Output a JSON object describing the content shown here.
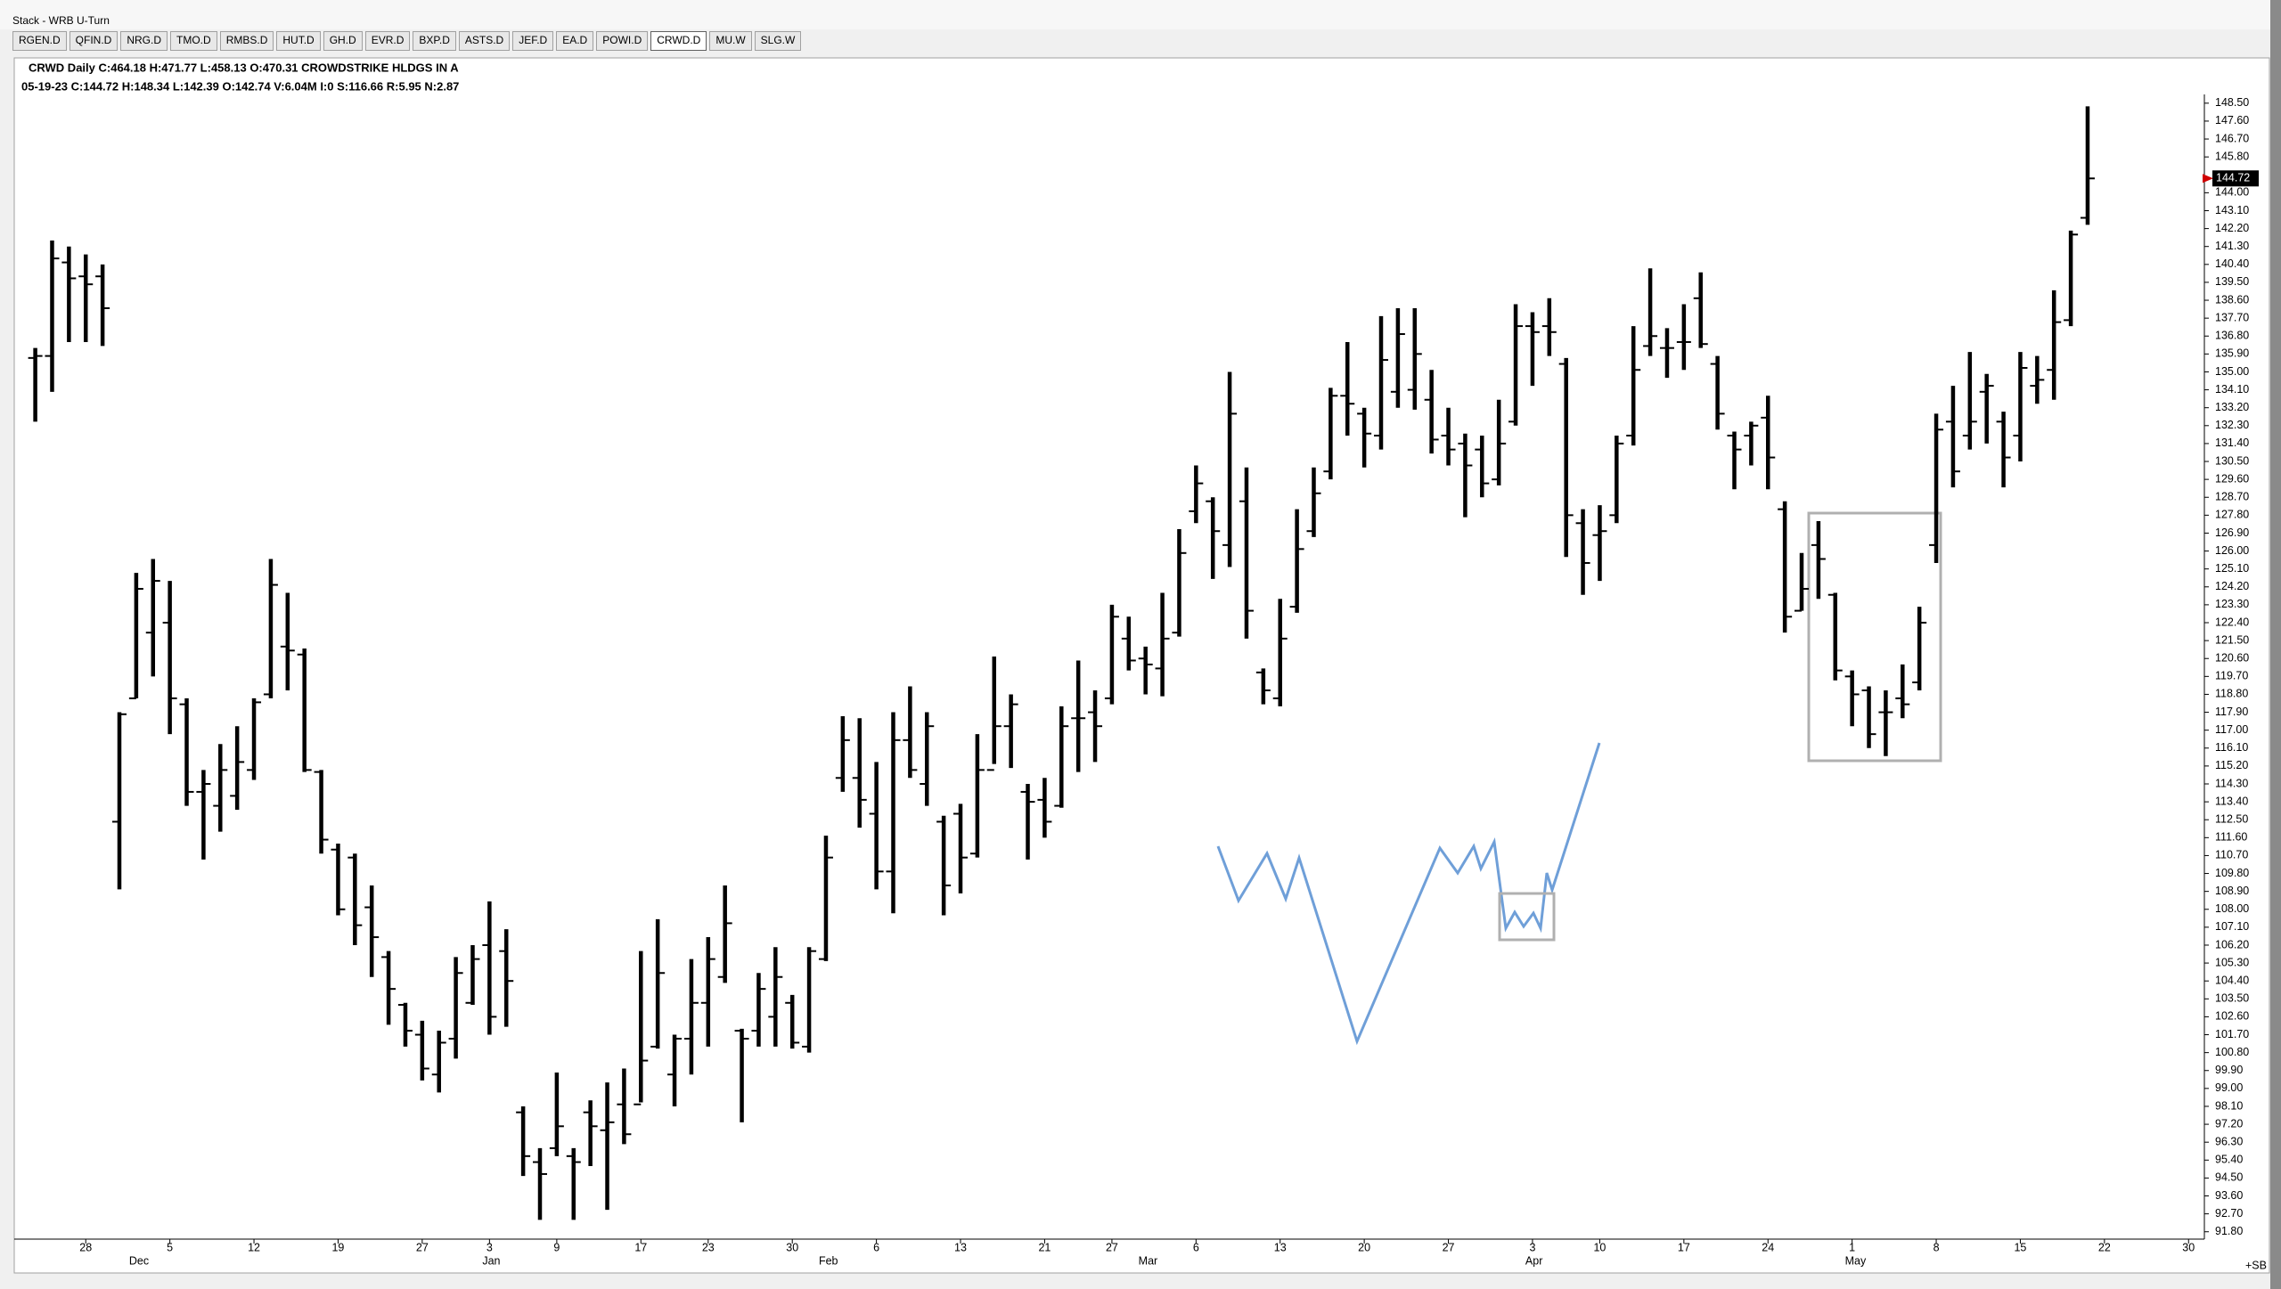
{
  "window_title": "Stack - WRB U-Turn",
  "tabs": [
    "RGEN.D",
    "QFIN.D",
    "NRG.D",
    "TMO.D",
    "RMBS.D",
    "HUT.D",
    "GH.D",
    "EVR.D",
    "BXP.D",
    "ASTS.D",
    "JEF.D",
    "EA.D",
    "POWI.D",
    "CRWD.D",
    "MU.W",
    "SLG.W"
  ],
  "header": {
    "line1": "CRWD Daily C:464.18 H:471.77 L:458.13 O:470.31 CROWDSTRIKE HLDGS IN A",
    "line2": "05-19-23 C:144.72 H:148.34 L:142.39 O:142.74 V:6.04M I:0 S:116.66 R:5.95 N:2.87"
  },
  "chart_data": {
    "type": "ohlc",
    "color": "#000000",
    "last_label": "144.72",
    "corner_label": "+SB",
    "xlim": [
      -1.25,
      128.94
    ],
    "ylim": [
      91.43,
      148.94
    ],
    "open": [
      135.7,
      135.8,
      140.5,
      139.8,
      139.8,
      112.4,
      118.6,
      121.9,
      122.4,
      118.3,
      113.9,
      113.2,
      113.7,
      115.0,
      118.8,
      121.2,
      120.8,
      114.9,
      111.0,
      110.6,
      108.1,
      105.6,
      103.2,
      101.7,
      99.7,
      101.5,
      103.3,
      106.2,
      105.9,
      97.8,
      95.3,
      96.0,
      95.6,
      97.8,
      96.9,
      98.2,
      98.2,
      101.1,
      99.7,
      101.5,
      103.3,
      104.6,
      101.9,
      101.9,
      102.6,
      103.3,
      101.1,
      105.5,
      114.6,
      114.6,
      112.8,
      109.9,
      116.5,
      114.3,
      112.4,
      112.8,
      110.8,
      115.0,
      117.2,
      113.9,
      113.5,
      113.2,
      117.6,
      117.9,
      118.6,
      121.6,
      120.6,
      120.1,
      121.9,
      128.0,
      128.5,
      126.3,
      128.5,
      119.9,
      118.6,
      123.2,
      127.0,
      130.0,
      133.8,
      132.9,
      131.8,
      134.0,
      134.1,
      133.6,
      131.8,
      131.4,
      131.1,
      129.6,
      132.5,
      137.3,
      137.3,
      135.4,
      127.4,
      126.8,
      127.8,
      131.8,
      136.3,
      136.2,
      136.5,
      138.7,
      135.4,
      131.8,
      131.8,
      132.7,
      128.1,
      123.0,
      126.3,
      123.8,
      119.7,
      119.0,
      117.9,
      118.6,
      119.4,
      126.3,
      132.5,
      131.8,
      134.0,
      132.5,
      131.8,
      134.3,
      135.1,
      137.6,
      142.74
    ],
    "high": [
      136.2,
      141.6,
      141.3,
      140.9,
      140.4,
      117.9,
      124.9,
      125.6,
      124.5,
      118.6,
      115.0,
      116.3,
      117.2,
      118.6,
      125.6,
      123.9,
      121.1,
      115.0,
      111.3,
      110.8,
      109.2,
      105.9,
      103.3,
      102.4,
      101.9,
      105.6,
      106.2,
      108.4,
      107.0,
      98.1,
      96.0,
      99.8,
      96.0,
      98.4,
      99.3,
      100.0,
      105.9,
      107.5,
      101.7,
      105.5,
      106.6,
      109.2,
      102.0,
      104.8,
      106.1,
      103.7,
      106.1,
      111.7,
      117.7,
      117.6,
      115.4,
      117.9,
      119.2,
      117.9,
      112.7,
      113.3,
      116.8,
      120.7,
      118.8,
      114.3,
      114.6,
      118.2,
      120.5,
      119.0,
      123.3,
      122.7,
      121.2,
      123.9,
      127.1,
      130.3,
      128.7,
      135.0,
      130.2,
      120.1,
      123.6,
      128.1,
      130.2,
      134.2,
      136.5,
      133.2,
      137.8,
      138.2,
      138.2,
      135.1,
      133.2,
      131.9,
      131.8,
      133.6,
      138.4,
      138.0,
      138.7,
      135.7,
      128.1,
      128.3,
      131.8,
      137.3,
      140.2,
      137.2,
      138.4,
      140.0,
      135.8,
      132.0,
      132.5,
      133.8,
      128.5,
      125.9,
      127.5,
      123.9,
      120.0,
      119.2,
      119.0,
      120.3,
      123.2,
      132.9,
      134.3,
      136.0,
      134.9,
      133.0,
      136.0,
      135.8,
      139.1,
      142.1,
      148.34
    ],
    "low": [
      132.5,
      134.0,
      136.5,
      136.5,
      136.3,
      109.0,
      118.6,
      119.7,
      116.8,
      113.2,
      110.5,
      111.9,
      113.0,
      114.5,
      118.6,
      119.0,
      114.9,
      110.8,
      107.7,
      106.2,
      104.6,
      102.2,
      101.1,
      99.4,
      98.8,
      100.5,
      103.2,
      101.7,
      102.1,
      94.6,
      92.4,
      95.6,
      92.4,
      95.1,
      92.9,
      96.2,
      98.3,
      101.0,
      98.1,
      99.7,
      101.1,
      104.3,
      97.3,
      101.1,
      101.1,
      101.0,
      100.8,
      105.4,
      113.9,
      112.1,
      109.0,
      107.8,
      114.6,
      113.2,
      107.7,
      108.8,
      110.6,
      115.3,
      115.1,
      110.5,
      111.6,
      113.1,
      114.9,
      115.4,
      118.3,
      120.0,
      118.8,
      118.7,
      121.7,
      127.4,
      124.6,
      125.2,
      121.6,
      118.3,
      118.2,
      122.9,
      126.7,
      129.6,
      131.8,
      130.2,
      131.1,
      133.2,
      133.1,
      130.9,
      130.3,
      127.7,
      128.7,
      129.3,
      132.3,
      134.3,
      135.8,
      125.7,
      123.8,
      124.5,
      127.4,
      131.3,
      135.8,
      134.7,
      135.1,
      136.2,
      132.1,
      129.1,
      130.3,
      129.1,
      121.9,
      123.0,
      123.6,
      119.5,
      117.2,
      116.1,
      115.7,
      117.6,
      119.0,
      125.4,
      129.2,
      131.1,
      131.4,
      129.2,
      130.5,
      133.4,
      133.6,
      137.3,
      142.39
    ],
    "close": [
      135.8,
      140.7,
      139.7,
      139.4,
      138.2,
      117.8,
      124.1,
      124.5,
      118.6,
      113.9,
      114.3,
      115.0,
      115.4,
      118.4,
      124.3,
      121.0,
      115.0,
      111.5,
      108.0,
      107.2,
      106.6,
      104.0,
      101.9,
      100.0,
      101.3,
      104.8,
      105.5,
      102.6,
      104.4,
      95.6,
      94.7,
      97.1,
      95.3,
      97.1,
      97.3,
      96.7,
      100.4,
      104.8,
      101.5,
      103.3,
      105.5,
      107.3,
      101.5,
      104.0,
      104.6,
      101.3,
      105.9,
      110.6,
      116.5,
      113.5,
      109.9,
      116.5,
      115.0,
      117.2,
      109.2,
      110.6,
      115.0,
      117.2,
      118.3,
      113.4,
      112.4,
      117.2,
      117.6,
      117.2,
      122.7,
      120.5,
      120.3,
      121.6,
      125.9,
      129.4,
      127.0,
      132.9,
      123.0,
      119.0,
      121.6,
      126.1,
      128.9,
      133.8,
      133.4,
      131.9,
      135.6,
      136.9,
      135.9,
      131.6,
      131.1,
      130.3,
      129.4,
      131.4,
      137.3,
      137.0,
      137.0,
      127.8,
      125.4,
      127.0,
      131.4,
      135.1,
      136.8,
      136.2,
      136.5,
      136.4,
      132.9,
      131.1,
      132.3,
      130.7,
      122.7,
      124.1,
      125.6,
      120.0,
      118.8,
      116.8,
      117.9,
      118.3,
      122.4,
      132.1,
      130.0,
      132.5,
      134.3,
      130.7,
      135.2,
      134.6,
      137.5,
      141.9,
      144.72
    ],
    "xticks": [
      {
        "value": 3,
        "label": "28"
      },
      {
        "value": 8,
        "label": "5"
      },
      {
        "value": 13,
        "label": "12"
      },
      {
        "value": 18,
        "label": "19"
      },
      {
        "value": 23,
        "label": "27"
      },
      {
        "value": 27,
        "label": "3"
      },
      {
        "value": 31,
        "label": "9"
      },
      {
        "value": 36,
        "label": "17"
      },
      {
        "value": 40,
        "label": "23"
      },
      {
        "value": 45,
        "label": "30"
      },
      {
        "value": 50,
        "label": "6"
      },
      {
        "value": 55,
        "label": "13"
      },
      {
        "value": 60,
        "label": "21"
      },
      {
        "value": 64,
        "label": "27"
      },
      {
        "value": 69,
        "label": "6"
      },
      {
        "value": 74,
        "label": "13"
      },
      {
        "value": 79,
        "label": "20"
      },
      {
        "value": 84,
        "label": "27"
      },
      {
        "value": 89,
        "label": "3"
      },
      {
        "value": 93,
        "label": "10"
      },
      {
        "value": 98,
        "label": "17"
      },
      {
        "value": 103,
        "label": "24"
      },
      {
        "value": 108,
        "label": "1"
      },
      {
        "value": 113,
        "label": "8"
      },
      {
        "value": 118,
        "label": "15"
      },
      {
        "value": 123,
        "label": "22"
      },
      {
        "value": 128,
        "label": "30"
      }
    ],
    "month_ticks": [
      {
        "value": 6,
        "label": "Dec"
      },
      {
        "value": 27,
        "label": "Jan"
      },
      {
        "value": 47,
        "label": "Feb"
      },
      {
        "value": 66,
        "label": "Mar"
      },
      {
        "value": 89,
        "label": "Apr"
      },
      {
        "value": 108,
        "label": "May"
      }
    ],
    "yticks": [
      {
        "value": 148.5,
        "label": "148.50"
      },
      {
        "value": 147.6,
        "label": "147.60"
      },
      {
        "value": 146.7,
        "label": "146.70"
      },
      {
        "value": 145.8,
        "label": "145.80"
      },
      {
        "value": 144.0,
        "label": "144.00"
      },
      {
        "value": 143.1,
        "label": "143.10"
      },
      {
        "value": 142.2,
        "label": "142.20"
      },
      {
        "value": 141.3,
        "label": "141.30"
      },
      {
        "value": 140.4,
        "label": "140.40"
      },
      {
        "value": 139.5,
        "label": "139.50"
      },
      {
        "value": 138.6,
        "label": "138.60"
      },
      {
        "value": 137.7,
        "label": "137.70"
      },
      {
        "value": 136.8,
        "label": "136.80"
      },
      {
        "value": 135.9,
        "label": "135.90"
      },
      {
        "value": 135.0,
        "label": "135.00"
      },
      {
        "value": 134.1,
        "label": "134.10"
      },
      {
        "value": 133.2,
        "label": "133.20"
      },
      {
        "value": 132.3,
        "label": "132.30"
      },
      {
        "value": 131.4,
        "label": "131.40"
      },
      {
        "value": 130.5,
        "label": "130.50"
      },
      {
        "value": 129.6,
        "label": "129.60"
      },
      {
        "value": 128.7,
        "label": "128.70"
      },
      {
        "value": 127.8,
        "label": "127.80"
      },
      {
        "value": 126.9,
        "label": "126.90"
      },
      {
        "value": 126.0,
        "label": "126.00"
      },
      {
        "value": 125.1,
        "label": "125.10"
      },
      {
        "value": 124.2,
        "label": "124.20"
      },
      {
        "value": 123.3,
        "label": "123.30"
      },
      {
        "value": 122.4,
        "label": "122.40"
      },
      {
        "value": 121.5,
        "label": "121.50"
      },
      {
        "value": 120.6,
        "label": "120.60"
      },
      {
        "value": 119.7,
        "label": "119.70"
      },
      {
        "value": 118.8,
        "label": "118.80"
      },
      {
        "value": 117.9,
        "label": "117.90"
      },
      {
        "value": 117.0,
        "label": "117.00"
      },
      {
        "value": 116.1,
        "label": "116.10"
      },
      {
        "value": 115.2,
        "label": "115.20"
      },
      {
        "value": 114.3,
        "label": "114.30"
      },
      {
        "value": 113.4,
        "label": "113.40"
      },
      {
        "value": 112.5,
        "label": "112.50"
      },
      {
        "value": 111.6,
        "label": "111.60"
      },
      {
        "value": 110.7,
        "label": "110.70"
      },
      {
        "value": 109.8,
        "label": "109.80"
      },
      {
        "value": 108.9,
        "label": "108.90"
      },
      {
        "value": 108.0,
        "label": "108.00"
      },
      {
        "value": 107.1,
        "label": "107.10"
      },
      {
        "value": 106.2,
        "label": "106.20"
      },
      {
        "value": 105.3,
        "label": "105.30"
      },
      {
        "value": 104.4,
        "label": "104.40"
      },
      {
        "value": 103.5,
        "label": "103.50"
      },
      {
        "value": 102.6,
        "label": "102.60"
      },
      {
        "value": 101.7,
        "label": "101.70"
      },
      {
        "value": 100.8,
        "label": "100.80"
      },
      {
        "value": 99.9,
        "label": "99.90"
      },
      {
        "value": 99.0,
        "label": "99.00"
      },
      {
        "value": 98.1,
        "label": "98.10"
      },
      {
        "value": 97.2,
        "label": "97.20"
      },
      {
        "value": 96.3,
        "label": "96.30"
      },
      {
        "value": 95.4,
        "label": "95.40"
      },
      {
        "value": 94.5,
        "label": "94.50"
      },
      {
        "value": 93.6,
        "label": "93.60"
      },
      {
        "value": 92.7,
        "label": "92.70"
      },
      {
        "value": 91.8,
        "label": "91.80"
      }
    ]
  }
}
